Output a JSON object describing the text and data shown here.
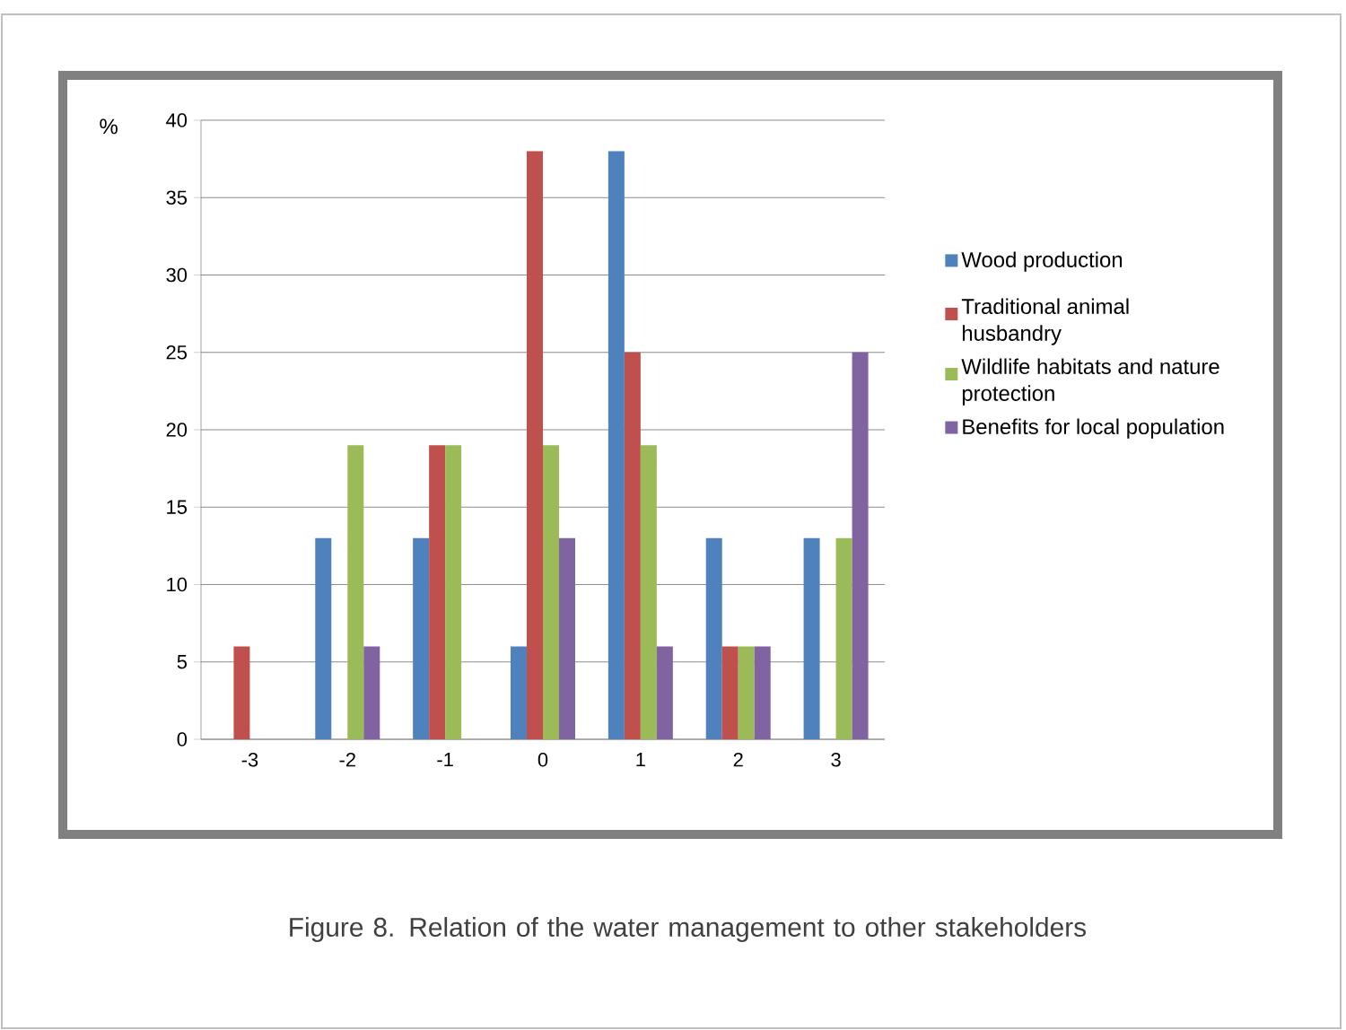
{
  "chart_data": {
    "type": "bar",
    "ylabel": "%",
    "categories": [
      "-3",
      "-2",
      "-1",
      "0",
      "1",
      "2",
      "3"
    ],
    "series": [
      {
        "name": "Wood production",
        "color": "#4f81bd",
        "values": [
          0,
          13,
          13,
          6,
          38,
          13,
          13
        ]
      },
      {
        "name": "Traditional animal husbandry",
        "color": "#c0504d",
        "values": [
          6,
          0,
          19,
          38,
          25,
          6,
          0
        ]
      },
      {
        "name": "Wildlife habitats and nature protection",
        "color": "#9bbb59",
        "values": [
          0,
          19,
          19,
          19,
          19,
          6,
          13
        ]
      },
      {
        "name": "Benefits for local population",
        "color": "#8064a2",
        "values": [
          0,
          6,
          0,
          13,
          6,
          6,
          25
        ]
      }
    ],
    "ylim": [
      0,
      40
    ],
    "yticks": [
      0,
      5,
      10,
      15,
      20,
      25,
      30,
      35,
      40
    ],
    "grid": "y",
    "legend": "right",
    "annotations": [
      "Figure 8. Relation of the water management to other stakeholders"
    ]
  }
}
